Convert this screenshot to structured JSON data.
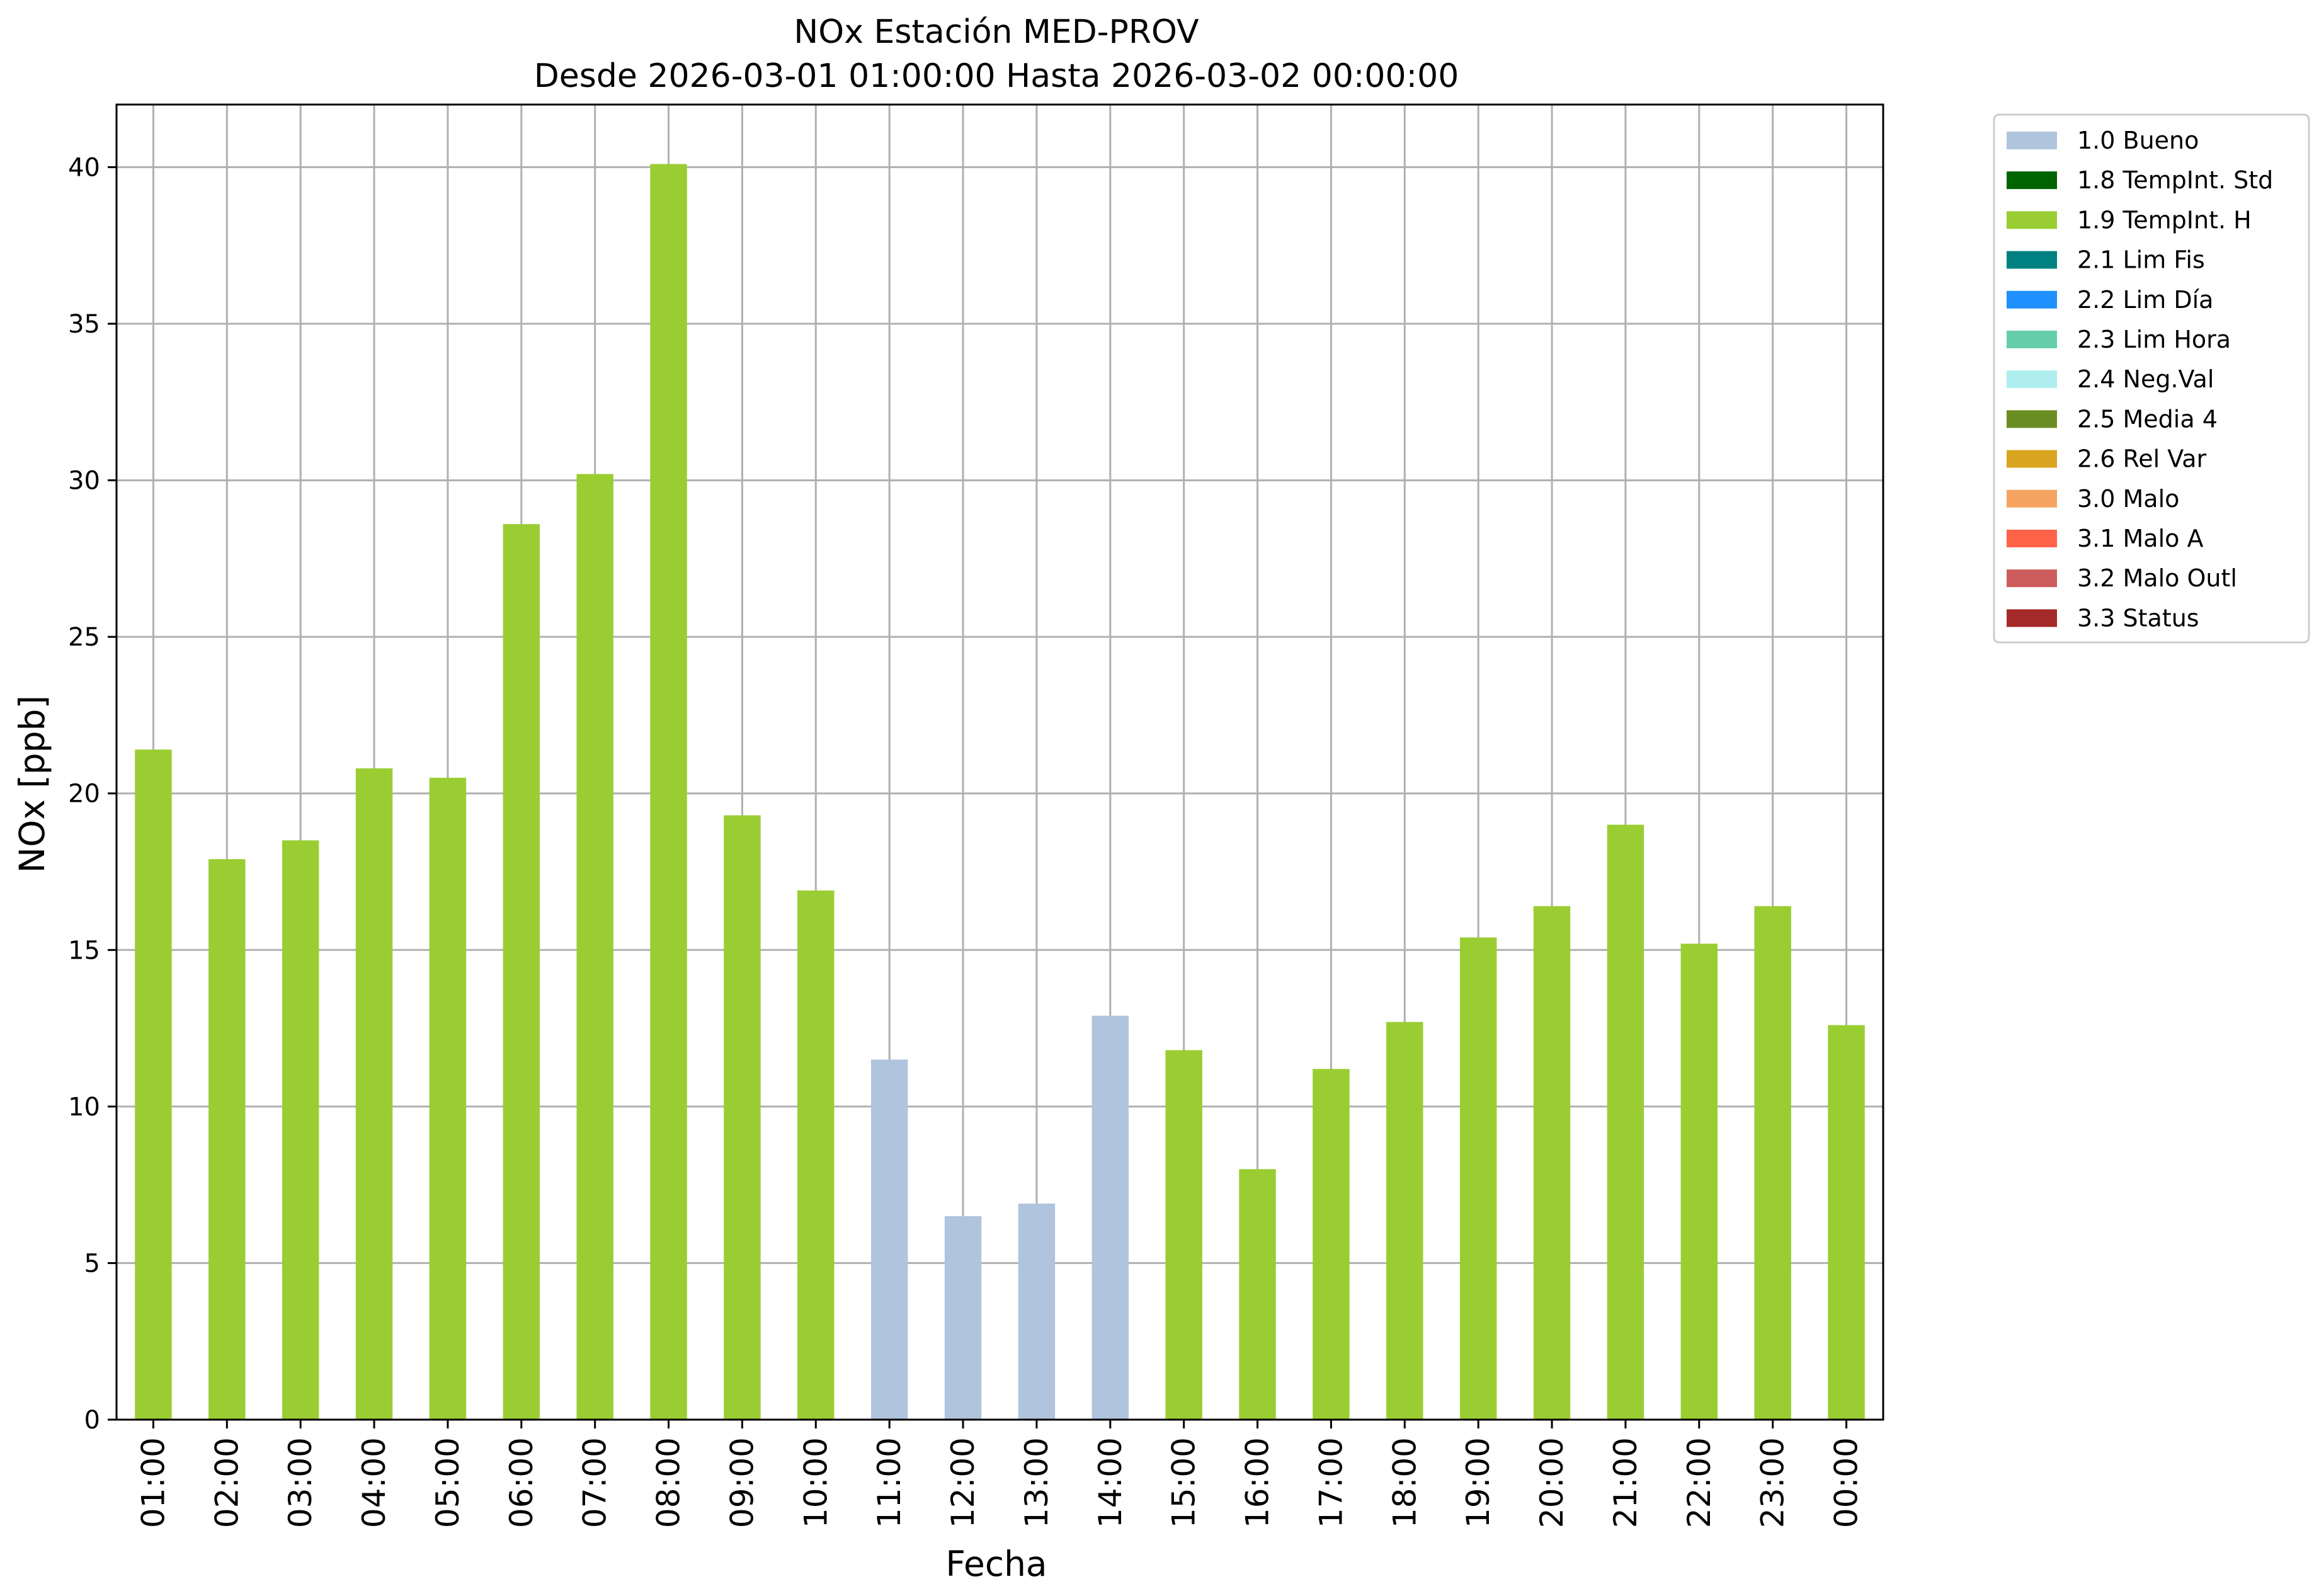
{
  "chart_data": {
    "type": "bar",
    "title": "NOx Estación MED-PROV",
    "subtitle": "Desde 2026-03-01 01:00:00 Hasta 2026-03-02 00:00:00",
    "xlabel": "Fecha",
    "ylabel": "NOx [ppb]",
    "ylim": [
      0,
      42
    ],
    "yticks": [
      0,
      5,
      10,
      15,
      20,
      25,
      30,
      35,
      40
    ],
    "grid": true,
    "legend_position": "outside-top-right",
    "categories": [
      "01:00",
      "02:00",
      "03:00",
      "04:00",
      "05:00",
      "06:00",
      "07:00",
      "08:00",
      "09:00",
      "10:00",
      "11:00",
      "12:00",
      "13:00",
      "14:00",
      "15:00",
      "16:00",
      "17:00",
      "18:00",
      "19:00",
      "20:00",
      "21:00",
      "22:00",
      "23:00",
      "00:00"
    ],
    "values": [
      21.4,
      17.9,
      18.5,
      20.8,
      20.5,
      28.6,
      30.2,
      40.1,
      19.3,
      16.9,
      11.5,
      6.5,
      6.9,
      12.9,
      11.8,
      8.0,
      11.2,
      12.7,
      15.4,
      16.4,
      19.0,
      15.2,
      16.4,
      12.6
    ],
    "flags": [
      "1.9 TempInt. H",
      "1.9 TempInt. H",
      "1.9 TempInt. H",
      "1.9 TempInt. H",
      "1.9 TempInt. H",
      "1.9 TempInt. H",
      "1.9 TempInt. H",
      "1.9 TempInt. H",
      "1.9 TempInt. H",
      "1.9 TempInt. H",
      "1.0 Bueno",
      "1.0 Bueno",
      "1.0 Bueno",
      "1.0 Bueno",
      "1.9 TempInt. H",
      "1.9 TempInt. H",
      "1.9 TempInt. H",
      "1.9 TempInt. H",
      "1.9 TempInt. H",
      "1.9 TempInt. H",
      "1.9 TempInt. H",
      "1.9 TempInt. H",
      "1.9 TempInt. H",
      "1.9 TempInt. H"
    ],
    "legend": [
      {
        "label": "1.0 Bueno",
        "color": "#b0c4de"
      },
      {
        "label": "1.8 TempInt. Std",
        "color": "#006400"
      },
      {
        "label": "1.9 TempInt. H",
        "color": "#9acd32"
      },
      {
        "label": "2.1 Lim Fis",
        "color": "#008080"
      },
      {
        "label": "2.2 Lim Día",
        "color": "#1e90ff"
      },
      {
        "label": "2.3 Lim Hora",
        "color": "#66cdaa"
      },
      {
        "label": "2.4 Neg.Val",
        "color": "#afeeee"
      },
      {
        "label": "2.5 Media 4",
        "color": "#6b8e23"
      },
      {
        "label": "2.6 Rel Var",
        "color": "#daa520"
      },
      {
        "label": "3.0 Malo",
        "color": "#f4a460"
      },
      {
        "label": "3.1 Malo A",
        "color": "#ff6347"
      },
      {
        "label": "3.2 Malo Outl",
        "color": "#cd5c5c"
      },
      {
        "label": "3.3 Status",
        "color": "#a52a2a"
      }
    ]
  }
}
